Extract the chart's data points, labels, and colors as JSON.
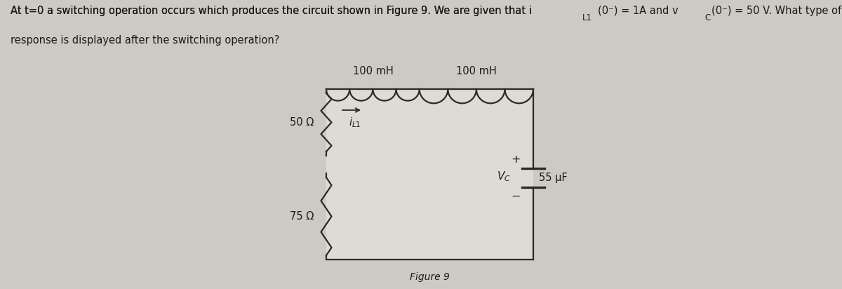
{
  "background_color": "#cdc9c3",
  "interior_color": "#dedad4",
  "text_color": "#1a1a1a",
  "circuit_line_color": "#2a2a2a",
  "title_line1a": "At t=0 a switching operation occurs which produces the circuit shown in Figure 9. We are given that i",
  "title_line1b": "L1",
  "title_line1c": "(0",
  "title_line1d": "⁻",
  "title_line1e": ") = 1A and v",
  "title_line1f": "C",
  "title_line1g": "(0",
  "title_line1h": "⁻",
  "title_line1i": ") = 50 V. What type of",
  "title_line2": "response is displayed after the switching operation?",
  "figure_label": "Figure 9",
  "label_50R": "50 Ω",
  "label_75R": "75 Ω",
  "label_L1": "100 mH",
  "label_L2": "100 mH",
  "label_C": "55 μF",
  "font_size_text": 10.5,
  "font_size_labels": 10.5,
  "font_size_sub": 8.5,
  "font_size_figure": 10
}
